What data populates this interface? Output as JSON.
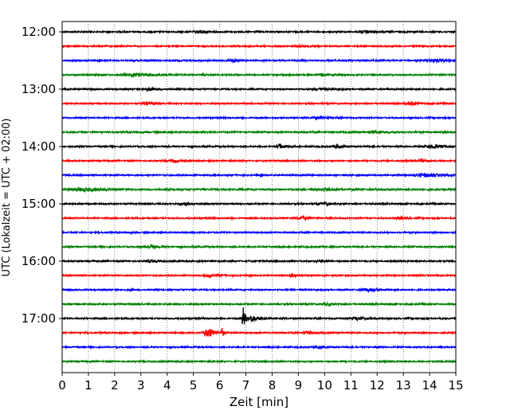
{
  "chart_data": {
    "type": "line",
    "subtype": "helicorder (seismogram traces, one line per 15 minutes)",
    "xlabel": "Zeit  [min]",
    "ylabel": "UTC (Lokalzeit = UTC + 02:00)",
    "xlim": [
      0,
      15
    ],
    "x_ticks": [
      "0",
      "1",
      "2",
      "3",
      "4",
      "5",
      "6",
      "7",
      "8",
      "9",
      "10",
      "11",
      "12",
      "13",
      "14",
      "15"
    ],
    "y_ticks": [
      "12:00",
      "13:00",
      "14:00",
      "15:00",
      "16:00",
      "17:00"
    ],
    "vertical_grid": "dotted at every minute",
    "trace_colors": [
      "#000000",
      "#ff0000",
      "#0000ff",
      "#008000"
    ],
    "traces": [
      {
        "start": "12:00",
        "color": "#000000",
        "noise": 0.85,
        "events": [
          {
            "t": 5.3,
            "amp": 0.55,
            "dur": 0.4
          },
          {
            "t": 11.6,
            "amp": 0.5,
            "dur": 0.4
          }
        ]
      },
      {
        "start": "12:15",
        "color": "#ff0000",
        "noise": 0.8,
        "events": [
          {
            "t": 9.0,
            "amp": 0.4,
            "dur": 0.3
          }
        ]
      },
      {
        "start": "12:30",
        "color": "#0000ff",
        "noise": 0.85,
        "events": [
          {
            "t": 6.5,
            "amp": 0.4,
            "dur": 0.4
          },
          {
            "t": 14.3,
            "amp": 0.55,
            "dur": 0.5
          }
        ]
      },
      {
        "start": "12:45",
        "color": "#008000",
        "noise": 0.85,
        "events": [
          {
            "t": 2.8,
            "amp": 0.55,
            "dur": 0.8
          },
          {
            "t": 9.9,
            "amp": 0.4,
            "dur": 0.3
          }
        ]
      },
      {
        "start": "13:00",
        "color": "#000000",
        "noise": 0.85,
        "events": [
          {
            "t": 3.3,
            "amp": 0.6,
            "dur": 0.3
          },
          {
            "t": 9.8,
            "amp": 0.45,
            "dur": 0.4
          }
        ]
      },
      {
        "start": "13:15",
        "color": "#ff0000",
        "noise": 0.8,
        "events": [
          {
            "t": 3.2,
            "amp": 0.55,
            "dur": 0.3
          },
          {
            "t": 13.3,
            "amp": 0.6,
            "dur": 0.4
          }
        ]
      },
      {
        "start": "13:30",
        "color": "#0000ff",
        "noise": 0.8,
        "events": [
          {
            "t": 9.8,
            "amp": 0.45,
            "dur": 0.4
          }
        ]
      },
      {
        "start": "13:45",
        "color": "#008000",
        "noise": 0.9,
        "events": [
          {
            "t": 12.0,
            "amp": 0.45,
            "dur": 0.5
          }
        ]
      },
      {
        "start": "14:00",
        "color": "#000000",
        "noise": 0.85,
        "events": [
          {
            "t": 8.3,
            "amp": 0.9,
            "dur": 0.2
          },
          {
            "t": 10.5,
            "amp": 0.9,
            "dur": 0.2
          },
          {
            "t": 14.2,
            "amp": 0.7,
            "dur": 0.5
          }
        ]
      },
      {
        "start": "14:15",
        "color": "#ff0000",
        "noise": 0.8,
        "events": [
          {
            "t": 4.3,
            "amp": 0.5,
            "dur": 0.3
          },
          {
            "t": 13.7,
            "amp": 0.55,
            "dur": 0.3
          }
        ]
      },
      {
        "start": "14:30",
        "color": "#0000ff",
        "noise": 0.85,
        "events": [
          {
            "t": 13.8,
            "amp": 0.7,
            "dur": 0.6
          }
        ]
      },
      {
        "start": "14:45",
        "color": "#008000",
        "noise": 1.0,
        "events": [
          {
            "t": 0.8,
            "amp": 0.6,
            "dur": 0.8
          },
          {
            "t": 10.0,
            "amp": 0.45,
            "dur": 0.4
          }
        ]
      },
      {
        "start": "15:00",
        "color": "#000000",
        "noise": 0.85,
        "events": [
          {
            "t": 4.7,
            "amp": 0.55,
            "dur": 0.3
          },
          {
            "t": 10.0,
            "amp": 0.4,
            "dur": 0.3
          }
        ]
      },
      {
        "start": "15:15",
        "color": "#ff0000",
        "noise": 0.8,
        "events": [
          {
            "t": 9.2,
            "amp": 0.6,
            "dur": 0.3
          },
          {
            "t": 12.9,
            "amp": 0.45,
            "dur": 0.3
          }
        ]
      },
      {
        "start": "15:30",
        "color": "#0000ff",
        "noise": 0.8,
        "events": []
      },
      {
        "start": "15:45",
        "color": "#008000",
        "noise": 0.85,
        "events": [
          {
            "t": 3.4,
            "amp": 0.45,
            "dur": 0.4
          }
        ]
      },
      {
        "start": "16:00",
        "color": "#000000",
        "noise": 0.85,
        "events": [
          {
            "t": 3.4,
            "amp": 0.5,
            "dur": 0.3
          },
          {
            "t": 9.9,
            "amp": 0.45,
            "dur": 0.3
          }
        ]
      },
      {
        "start": "16:15",
        "color": "#ff0000",
        "noise": 0.8,
        "events": [
          {
            "t": 5.7,
            "amp": 0.55,
            "dur": 0.4
          },
          {
            "t": 8.8,
            "amp": 0.7,
            "dur": 0.15
          }
        ]
      },
      {
        "start": "16:30",
        "color": "#0000ff",
        "noise": 0.8,
        "events": [
          {
            "t": 11.7,
            "amp": 0.6,
            "dur": 0.5
          }
        ]
      },
      {
        "start": "16:45",
        "color": "#008000",
        "noise": 0.85,
        "events": [
          {
            "t": 10.1,
            "amp": 0.45,
            "dur": 0.3
          }
        ]
      },
      {
        "start": "17:00",
        "color": "#000000",
        "noise": 0.85,
        "events": [
          {
            "t": 6.9,
            "amp": 4.6,
            "dur": 0.08
          },
          {
            "t": 7.2,
            "amp": 1.3,
            "dur": 0.35
          },
          {
            "t": 11.3,
            "amp": 0.55,
            "dur": 0.4
          }
        ]
      },
      {
        "start": "17:15",
        "color": "#ff0000",
        "noise": 0.8,
        "events": [
          {
            "t": 5.6,
            "amp": 1.9,
            "dur": 0.3
          },
          {
            "t": 6.1,
            "amp": 1.5,
            "dur": 0.08
          },
          {
            "t": 9.4,
            "amp": 0.55,
            "dur": 0.3
          }
        ]
      },
      {
        "start": "17:30",
        "color": "#0000ff",
        "noise": 0.8,
        "events": [
          {
            "t": 9.8,
            "amp": 0.5,
            "dur": 0.3
          }
        ]
      },
      {
        "start": "17:45",
        "color": "#008000",
        "noise": 0.8,
        "events": []
      }
    ]
  }
}
